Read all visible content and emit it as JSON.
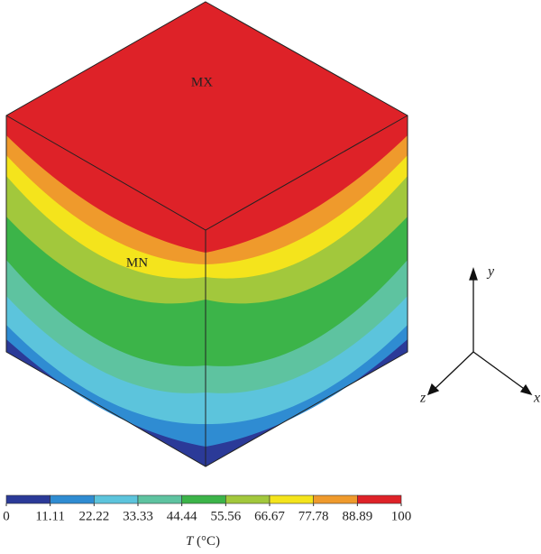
{
  "labels": {
    "max": "MX",
    "min": "MN"
  },
  "axes": {
    "x": "x",
    "y": "y",
    "z": "z"
  },
  "colorbar": {
    "ticks": [
      0,
      11.11,
      22.22,
      33.33,
      44.44,
      55.56,
      66.67,
      77.78,
      88.89,
      100
    ],
    "colors": [
      "#2b3a98",
      "#2f8cd2",
      "#5cc4dc",
      "#5ec3a0",
      "#3cb449",
      "#a2c83c",
      "#f4e41c",
      "#ef9a2c",
      "#de2228"
    ],
    "symbol": "T",
    "unit": "(°C)"
  }
}
